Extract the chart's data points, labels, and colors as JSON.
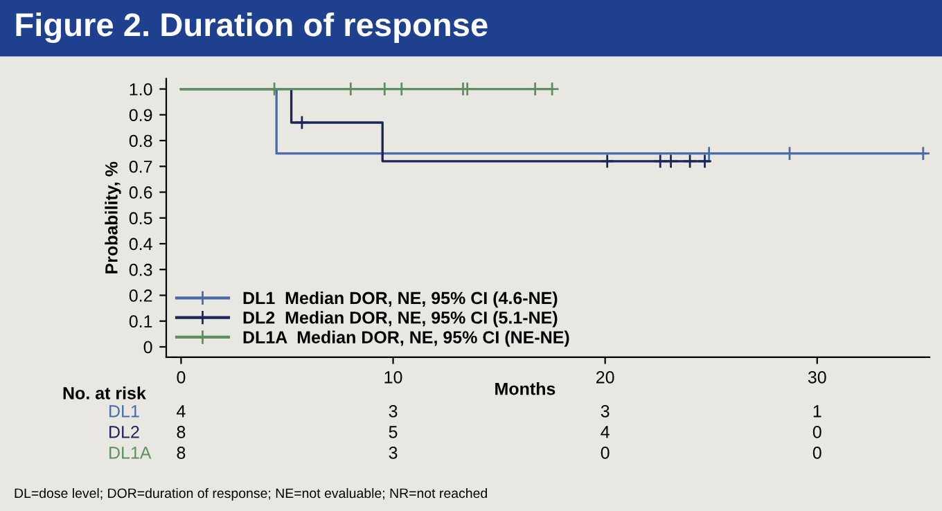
{
  "chart_data": {
    "type": "step",
    "title": "Figure 2. Duration of response",
    "xlabel": "Months",
    "ylabel": "Probability, %",
    "xlim": [
      -0.7,
      35.3
    ],
    "xticks": [
      0,
      10,
      20,
      30
    ],
    "ylim": [
      -0.04,
      1.04
    ],
    "yticks": [
      0,
      0.1,
      0.2,
      0.3,
      0.4,
      0.5,
      0.6,
      0.7,
      0.8,
      0.9,
      {
        "value": 1,
        "label": "1.0"
      }
    ],
    "grid": false,
    "legend": "bottom left",
    "line_style": "solid",
    "series": [
      {
        "name": "DL1  Median DOR, NE, 95% CI (4.6-NE)",
        "color": "#4a6aa8",
        "marker": "none",
        "x": [
          0,
          4.5,
          35.1
        ],
        "values": [
          1,
          0.75,
          0.75
        ]
      },
      {
        "name": "DL2  Median DOR, NE, 95% CI (5.1-NE)",
        "color": "#1c2558",
        "marker": "none",
        "x": [
          0,
          5.2,
          9.5,
          24.9
        ],
        "values": [
          1,
          0.87,
          0.72,
          0.72
        ]
      },
      {
        "name": "DL1A  Median DOR, NE, 95% CI (NE-NE)",
        "color": "#5f8f5f",
        "marker": "none",
        "x": [
          0,
          17.5
        ],
        "values": [
          1,
          1
        ]
      },
      {
        "type": "scatter",
        "color": "#4a6aa8",
        "marker": "cross",
        "x": [
          24.9,
          28.7,
          35.0
        ],
        "values": [
          0.75,
          0.75,
          0.75
        ]
      },
      {
        "type": "scatter",
        "color": "#1c2558",
        "marker": "cross",
        "x": [
          5.7,
          20.1,
          22.6,
          23.1,
          24.0,
          24.7
        ],
        "values": [
          0.87,
          0.72,
          0.72,
          0.72,
          0.72,
          0.72
        ]
      },
      {
        "type": "scatter",
        "color": "#5f8f5f",
        "marker": "cross",
        "x": [
          4.4,
          8.0,
          9.6,
          10.4,
          13.3,
          13.5,
          16.7,
          17.5
        ],
        "values": [
          1,
          1,
          1,
          1,
          1,
          1,
          1,
          1
        ]
      }
    ],
    "annotations": [
      "No. at risk",
      "DL1",
      "DL2",
      "DL1A",
      "DL=dose level; DOR=duration of response; NE=not evaluable; NR=not reached",
      "4",
      "3",
      "3",
      "1",
      "8",
      "5",
      "4",
      "0",
      "8",
      "3",
      "0",
      "0"
    ]
  }
}
